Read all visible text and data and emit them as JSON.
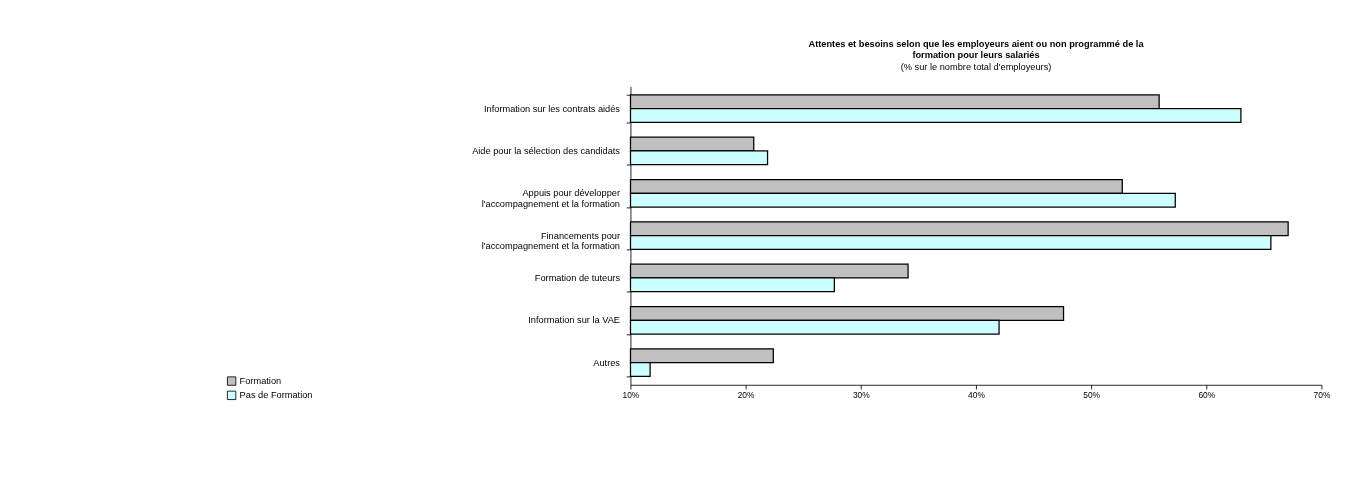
{
  "chart_data": {
    "type": "bar",
    "orientation": "horizontal",
    "title": "Attentes et besoins selon que les employeurs aient ou non programmé de la formation pour leurs salariés",
    "subtitle": "(% sur le nombre total d'employeurs)",
    "categories": [
      "Information sur les contrats aidés",
      "Aide pour la sélection des candidats",
      "Appuis pour développer\nl'accompagnement et la formation",
      "Financements pour\nl'accompagnement et la formation",
      "Formation de tuteurs",
      "Information sur la VAE",
      "Autres"
    ],
    "series": [
      {
        "name": "Formation",
        "color": "#c0c0c0",
        "values": [
          55.9,
          20.7,
          52.7,
          67.1,
          34.1,
          47.6,
          22.4
        ]
      },
      {
        "name": "Pas de Formation",
        "color": "#ccffff",
        "values": [
          63.0,
          21.9,
          57.3,
          65.6,
          27.7,
          42.0,
          11.7
        ]
      }
    ],
    "xlim": [
      10,
      70
    ],
    "xticks": [
      {
        "value": 10,
        "label": "10%"
      },
      {
        "value": 20,
        "label": "20%"
      },
      {
        "value": 30,
        "label": "30%"
      },
      {
        "value": 40,
        "label": "40%"
      },
      {
        "value": 50,
        "label": "50%"
      },
      {
        "value": 60,
        "label": "60%"
      },
      {
        "value": 70,
        "label": "70%"
      }
    ],
    "grid": false,
    "legend": "bottom left"
  }
}
